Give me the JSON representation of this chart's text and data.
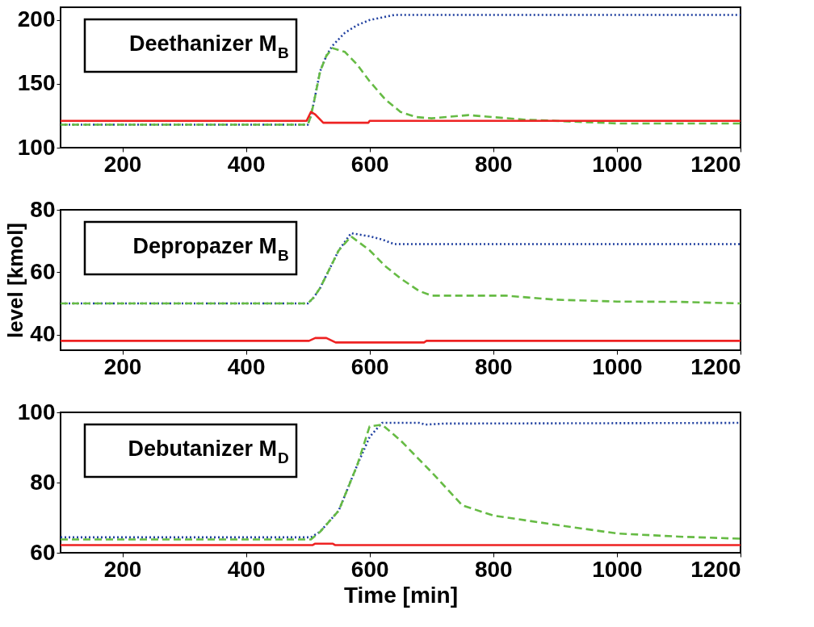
{
  "chart_data": [
    {
      "type": "line",
      "annotations": [
        "Deethanizer M$_{B}$"
      ],
      "xlim": [
        100,
        1200
      ],
      "xticks": [
        200,
        400,
        600,
        800,
        1000,
        1200
      ],
      "ylim": [
        100,
        210
      ],
      "yticks": [
        100,
        150,
        200
      ],
      "series": [
        {
          "color": "#2040a0",
          "line_style": "dotted",
          "x": [
            100,
            500,
            505,
            510,
            520,
            530,
            540,
            560,
            580,
            600,
            620,
            640,
            1200
          ],
          "values": [
            118,
            118,
            125,
            136,
            160,
            172,
            180,
            190,
            196,
            200,
            202,
            204,
            204
          ]
        },
        {
          "color": "#66bb44",
          "line_style": "dashed",
          "x": [
            100,
            500,
            505,
            510,
            520,
            530,
            540,
            560,
            580,
            600,
            625,
            650,
            675,
            700,
            760,
            850,
            1000,
            1200
          ],
          "values": [
            118,
            118,
            125,
            136,
            160,
            172,
            178,
            175,
            165,
            152,
            138,
            128,
            124,
            123,
            125.5,
            122,
            119,
            119
          ]
        },
        {
          "color": "#ee2222",
          "line_style": "solid",
          "x": [
            100,
            498,
            505,
            512,
            525,
            598,
            600,
            1200
          ],
          "values": [
            121,
            121,
            128,
            126,
            119.5,
            119.5,
            121,
            121
          ]
        }
      ]
    },
    {
      "type": "line",
      "annotations": [
        "Depropazer M$_{B}$"
      ],
      "ylabel": "level [kmol]",
      "xlim": [
        100,
        1200
      ],
      "xticks": [
        200,
        400,
        600,
        800,
        1000,
        1200
      ],
      "ylim": [
        35,
        80
      ],
      "yticks": [
        40,
        60,
        80
      ],
      "series": [
        {
          "color": "#2040a0",
          "line_style": "dotted",
          "x": [
            100,
            500,
            510,
            520,
            535,
            550,
            570,
            600,
            620,
            640,
            1200
          ],
          "values": [
            50,
            50,
            52,
            55,
            61,
            67,
            72.5,
            71.5,
            70.5,
            69,
            69
          ]
        },
        {
          "color": "#66bb44",
          "line_style": "dashed",
          "x": [
            100,
            500,
            510,
            520,
            535,
            550,
            570,
            600,
            625,
            650,
            680,
            700,
            820,
            900,
            1000,
            1100,
            1200
          ],
          "values": [
            50,
            50,
            52,
            55,
            61,
            67,
            71.5,
            67,
            62,
            58,
            54,
            52.5,
            52.5,
            51.2,
            50.6,
            50.5,
            50
          ]
        },
        {
          "color": "#ee2222",
          "line_style": "solid",
          "x": [
            100,
            502,
            512,
            530,
            545,
            688,
            692,
            1200
          ],
          "values": [
            38,
            38,
            38.9,
            38.9,
            37.5,
            37.5,
            38,
            38
          ]
        }
      ]
    },
    {
      "type": "line",
      "annotations": [
        "Debutanizer M$_{D}$"
      ],
      "xlabel": "Time [min]",
      "xlim": [
        100,
        1200
      ],
      "xticks": [
        200,
        400,
        600,
        800,
        1000,
        1200
      ],
      "ylim": [
        60,
        100
      ],
      "yticks": [
        60,
        80,
        100
      ],
      "series": [
        {
          "color": "#2040a0",
          "line_style": "dotted",
          "x": [
            100,
            505,
            520,
            550,
            580,
            600,
            620,
            680,
            690,
            720,
            1200
          ],
          "values": [
            64.4,
            64.4,
            66,
            72,
            85,
            93,
            97,
            97,
            96.5,
            96.8,
            97
          ]
        },
        {
          "color": "#66bb44",
          "line_style": "dashed",
          "x": [
            100,
            505,
            520,
            550,
            580,
            600,
            620,
            650,
            700,
            750,
            800,
            900,
            1000,
            1100,
            1200
          ],
          "values": [
            63.8,
            63.8,
            66,
            72,
            85,
            96,
            96.5,
            92,
            83,
            73.5,
            70.6,
            68,
            65.5,
            64.6,
            64
          ]
        },
        {
          "color": "#ee2222",
          "line_style": "solid",
          "x": [
            100,
            508,
            512,
            540,
            544,
            1200
          ],
          "values": [
            62.2,
            62.2,
            62.6,
            62.6,
            62.2,
            62.2
          ]
        }
      ]
    }
  ]
}
